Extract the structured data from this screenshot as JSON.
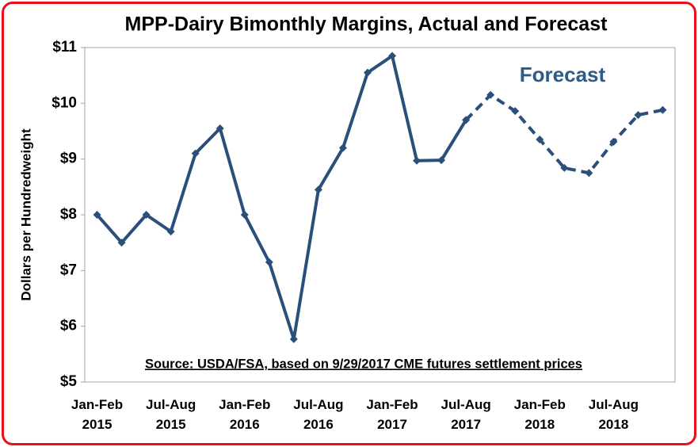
{
  "chart_data": {
    "type": "line",
    "title": "MPP-Dairy Bimonthly Margins, Actual and Forecast",
    "y_label": "Dollars per Hundredweight",
    "annotation": "Source:  USDA/FSA, based on 9/29/2017 CME futures settlement prices",
    "categories": [
      "Jan-Feb 2015",
      null,
      null,
      "Jul-Aug 2015",
      null,
      null,
      "Jan-Feb 2016",
      null,
      null,
      "Jul-Aug 2016",
      null,
      null,
      "Jan-Feb 2017",
      null,
      null,
      "Jul-Aug 2017",
      null,
      null,
      "Jan-Feb 2018",
      null,
      null,
      "Jul-Aug 2018",
      null,
      null
    ],
    "series": [
      {
        "color": "#2a4f7a",
        "dashed": false,
        "values": [
          8.0,
          7.5,
          8.0,
          7.7,
          9.1,
          9.55,
          8.0,
          7.15,
          5.77,
          8.45,
          9.2,
          10.55,
          10.85,
          8.97,
          8.98,
          9.7,
          null,
          null,
          null,
          null,
          null,
          null,
          null,
          null
        ]
      },
      {
        "name": "Forecast",
        "color": "#2a4f7a",
        "dashed": true,
        "values": [
          null,
          null,
          null,
          null,
          null,
          null,
          null,
          null,
          null,
          null,
          null,
          null,
          null,
          null,
          null,
          9.7,
          10.15,
          9.86,
          9.35,
          8.84,
          8.75,
          9.31,
          9.79,
          9.88
        ]
      }
    ],
    "ylim": [
      5,
      11
    ],
    "yticks": [
      {
        "value": 5,
        "label": "$5"
      },
      {
        "value": 6,
        "label": "$6"
      },
      {
        "value": 7,
        "label": "$7"
      },
      {
        "value": 8,
        "label": "$8"
      },
      {
        "value": 9,
        "label": "$9"
      },
      {
        "value": 10,
        "label": "$10"
      },
      {
        "value": 11,
        "label": "$11"
      }
    ],
    "grid": false
  }
}
